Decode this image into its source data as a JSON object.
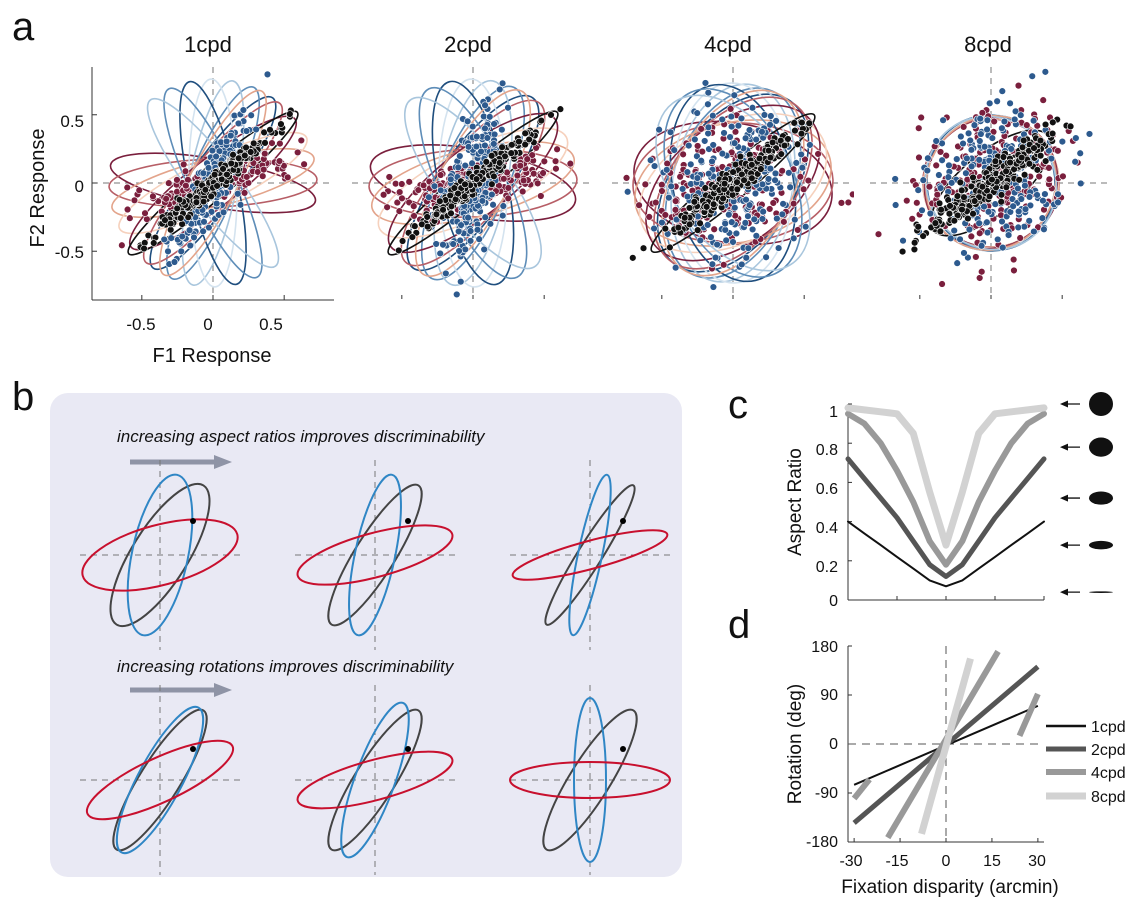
{
  "panel_labels": {
    "a": "a",
    "b": "b",
    "c": "c",
    "d": "d"
  },
  "colors": {
    "red_series": "#7a1f3d",
    "blue_series": "#2d5a8e",
    "black_series": "#111111",
    "panel_b_bg": "#e9e9f4",
    "ellipse_blue": "#2f86c5",
    "ellipse_red": "#c8102e",
    "ellipse_dark": "#444444",
    "arrow_gray": "#8f94a6"
  },
  "chart_data": [
    {
      "id": "a",
      "type": "scatter",
      "panel_titles": [
        "1cpd",
        "2cpd",
        "4cpd",
        "8cpd"
      ],
      "xlabel": "F1 Response",
      "ylabel": "F2 Response",
      "x_ticks": [
        "-0.5",
        "0",
        "0.5"
      ],
      "y_ticks": [
        "0.5",
        "0",
        "-0.5"
      ],
      "xlim": [
        -0.85,
        0.85
      ],
      "ylim": [
        -0.85,
        0.85
      ],
      "series": [
        {
          "group": "red",
          "orientation_deg": [
            20,
            15,
            8,
            45
          ],
          "spread": [
            0.06,
            0.08,
            0.2,
            0.25
          ]
        },
        {
          "group": "blue",
          "orientation_deg": [
            65,
            75,
            85,
            45
          ],
          "spread": [
            0.06,
            0.09,
            0.22,
            0.25
          ]
        },
        {
          "group": "black",
          "orientation_deg": [
            42,
            42,
            40,
            40
          ],
          "spread": [
            0.03,
            0.03,
            0.04,
            0.05
          ]
        }
      ]
    },
    {
      "id": "b",
      "type": "diagram",
      "captions": [
        "increasing aspect ratios improves discriminability",
        "increasing rotations improves discriminability"
      ]
    },
    {
      "id": "c",
      "type": "line",
      "ylabel": "Aspect Ratio",
      "y_ticks": [
        "1",
        "0.8",
        "0.6",
        "0.4",
        "0.2",
        "0"
      ],
      "ylim": [
        0,
        1
      ],
      "xlim": [
        -30,
        30
      ],
      "x": [
        -30,
        -25,
        -20,
        -15,
        -10,
        -5,
        0,
        5,
        10,
        15,
        20,
        25,
        30
      ],
      "series": [
        {
          "name": "1cpd",
          "values": [
            0.4,
            0.34,
            0.28,
            0.22,
            0.16,
            0.1,
            0.07,
            0.1,
            0.16,
            0.22,
            0.28,
            0.34,
            0.4
          ]
        },
        {
          "name": "2cpd",
          "values": [
            0.72,
            0.62,
            0.52,
            0.42,
            0.3,
            0.18,
            0.12,
            0.18,
            0.3,
            0.42,
            0.52,
            0.62,
            0.72
          ]
        },
        {
          "name": "4cpd",
          "values": [
            0.95,
            0.9,
            0.8,
            0.66,
            0.5,
            0.3,
            0.18,
            0.3,
            0.5,
            0.66,
            0.8,
            0.9,
            0.95
          ]
        },
        {
          "name": "8cpd",
          "values": [
            0.98,
            0.97,
            0.96,
            0.95,
            0.85,
            0.55,
            0.28,
            0.55,
            0.85,
            0.95,
            0.96,
            0.97,
            0.98
          ]
        }
      ],
      "marker_aspect_ratios": [
        1,
        0.8,
        0.55,
        0.35,
        0.06
      ]
    },
    {
      "id": "d",
      "type": "line",
      "xlabel": "Fixation disparity (arcmin)",
      "ylabel": "Rotation (deg)",
      "x_ticks": [
        "-30",
        "-15",
        "0",
        "15",
        "30"
      ],
      "y_ticks": [
        "180",
        "90",
        "0",
        "-90",
        "-180"
      ],
      "xlim": [
        -32,
        32
      ],
      "ylim": [
        -180,
        180
      ],
      "series": [
        {
          "name": "1cpd",
          "segments": [
            [
              [
                -30,
                -75
              ],
              [
                30,
                70
              ]
            ]
          ]
        },
        {
          "name": "2cpd",
          "segments": [
            [
              [
                -30,
                -145
              ],
              [
                30,
                142
              ]
            ]
          ]
        },
        {
          "name": "4cpd",
          "segments": [
            [
              [
                -30,
                -100
              ],
              [
                -25,
                -65
              ]
            ],
            [
              [
                -19,
                -172
              ],
              [
                17,
                170
              ]
            ],
            [
              [
                24,
                15
              ],
              [
                30,
                92
              ]
            ]
          ]
        },
        {
          "name": "8cpd",
          "segments": [
            [
              [
                -8,
                -165
              ],
              [
                8,
                157
              ]
            ]
          ]
        }
      ],
      "legend": [
        "1cpd",
        "2cpd",
        "4cpd",
        "8cpd"
      ],
      "legend_position": "right"
    }
  ]
}
